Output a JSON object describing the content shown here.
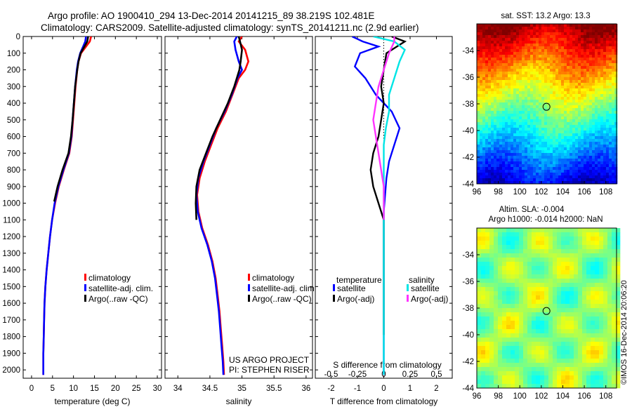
{
  "header": {
    "line1": "Argo profile: AO 1900410_294 13-Dec-2014 20141215_89 38.219S 102.481E",
    "line2": "Climatology: CARS2009. Satellite-adjusted climatology: synTS_20141211.nc (2.9d earlier)"
  },
  "colors": {
    "climatology": "#ff0000",
    "satellite": "#0000ff",
    "argo": "#000000",
    "sat_salinity": "#00e5e5",
    "argo_salinity": "#ff33ff"
  },
  "credits": {
    "project": "US ARGO PROJECT",
    "pi": "PI: STEPHEN RISER",
    "stamp": "©IMOS 16-Dec-2014 20:06:20"
  },
  "chart_data": [
    {
      "type": "line",
      "xlabel": "temperature (deg C)",
      "xlim": [
        -2,
        31
      ],
      "xticks": [
        0,
        5,
        10,
        15,
        20,
        25,
        30
      ],
      "ylim": [
        0,
        2050
      ],
      "yticks": [
        0,
        100,
        200,
        300,
        400,
        500,
        600,
        700,
        800,
        900,
        1000,
        1100,
        1200,
        1300,
        1400,
        1500,
        1600,
        1700,
        1800,
        1900,
        2000
      ],
      "y_reversed": true,
      "legend": [
        "climatology",
        "satellite-adj. clim.",
        "Argo(..raw -QC)"
      ],
      "series": [
        {
          "name": "climatology",
          "color": "#ff0000",
          "x": [
            14.2,
            13.9,
            13.0,
            11.8,
            11.2,
            10.9,
            10.5,
            10.2,
            9.9,
            9.6,
            9.0,
            7.7,
            6.5,
            5.6,
            4.9,
            4.4,
            4.0,
            3.6,
            3.3,
            3.1,
            3.0,
            2.9,
            2.8,
            2.8
          ],
          "y": [
            0,
            30,
            60,
            100,
            150,
            200,
            300,
            400,
            500,
            600,
            700,
            800,
            900,
            1000,
            1100,
            1200,
            1300,
            1400,
            1500,
            1600,
            1700,
            1800,
            1900,
            2030
          ]
        },
        {
          "name": "satellite-adj. clim.",
          "color": "#0000ff",
          "x": [
            13.0,
            12.8,
            12.3,
            11.6,
            11.1,
            10.8,
            10.4,
            10.1,
            9.8,
            9.5,
            8.9,
            7.6,
            6.4,
            5.5,
            4.9,
            4.4,
            4.0,
            3.6,
            3.3,
            3.1,
            3.0,
            2.9,
            2.8,
            2.8
          ],
          "y": [
            0,
            30,
            60,
            100,
            150,
            200,
            300,
            400,
            500,
            600,
            700,
            800,
            900,
            1000,
            1100,
            1200,
            1300,
            1400,
            1500,
            1600,
            1700,
            1800,
            1900,
            2030
          ]
        },
        {
          "name": "Argo(..raw -QC)",
          "color": "#000000",
          "x": [
            13.5,
            13.3,
            12.6,
            11.7,
            11.2,
            10.9,
            10.4,
            10.1,
            9.8,
            9.4,
            8.8,
            7.4,
            6.2,
            5.4
          ],
          "y": [
            0,
            30,
            60,
            100,
            150,
            200,
            300,
            400,
            500,
            600,
            700,
            800,
            900,
            990
          ]
        }
      ]
    },
    {
      "type": "line",
      "xlabel": "salinity",
      "xlim": [
        33.8,
        36.1
      ],
      "xticks": [
        34,
        34.5,
        35,
        35.5,
        36
      ],
      "ylim": [
        0,
        2050
      ],
      "y_reversed": true,
      "legend": [
        "climatology",
        "satellite-adj. clim.",
        "Argo(..raw -QC)"
      ],
      "series": [
        {
          "name": "climatology",
          "color": "#ff0000",
          "x": [
            35.0,
            34.95,
            35.05,
            35.1,
            35.05,
            34.95,
            34.85,
            34.75,
            34.62,
            34.52,
            34.42,
            34.34,
            34.3,
            34.32,
            34.38,
            34.47,
            34.54,
            34.59,
            34.62,
            34.65,
            34.67,
            34.69,
            34.71,
            34.72
          ],
          "y": [
            0,
            30,
            80,
            150,
            200,
            250,
            350,
            450,
            550,
            650,
            750,
            850,
            950,
            1050,
            1150,
            1250,
            1350,
            1450,
            1550,
            1650,
            1750,
            1850,
            1950,
            2030
          ]
        },
        {
          "name": "satellite-adj. clim.",
          "color": "#0000ff",
          "x": [
            34.92,
            34.88,
            34.9,
            34.95,
            35.0,
            34.93,
            34.84,
            34.73,
            34.6,
            34.5,
            34.4,
            34.32,
            34.29,
            34.31,
            34.37,
            34.46,
            34.53,
            34.58,
            34.61,
            34.64,
            34.66,
            34.68,
            34.7,
            34.71
          ],
          "y": [
            0,
            30,
            80,
            150,
            200,
            250,
            350,
            450,
            550,
            650,
            750,
            850,
            950,
            1050,
            1150,
            1250,
            1350,
            1450,
            1550,
            1650,
            1750,
            1850,
            1950,
            2030
          ]
        },
        {
          "name": "Argo(..raw -QC)",
          "color": "#000000",
          "x": [
            34.95,
            34.97,
            35.0,
            34.98,
            34.96,
            34.88,
            34.78,
            34.66,
            34.54,
            34.44,
            34.34,
            34.29,
            34.28,
            34.29
          ],
          "y": [
            0,
            30,
            80,
            150,
            200,
            300,
            400,
            500,
            600,
            700,
            800,
            900,
            1000,
            1100
          ]
        }
      ]
    },
    {
      "type": "line",
      "xlabel": "T difference from climatology",
      "xlabel2": "S difference from climatology",
      "xlim": [
        -2.6,
        2.6
      ],
      "xticks": [
        -2,
        -1,
        0,
        1,
        2
      ],
      "xticks_salinity": [
        -0.5,
        -0.25,
        0,
        0.25,
        0.5
      ],
      "xticks_salinity_labels": [
        "-0.5",
        "-0.25",
        "0",
        "0.25",
        "0.5"
      ],
      "ylim": [
        0,
        2050
      ],
      "y_reversed": true,
      "legend_titles": [
        "temperature",
        "salinity"
      ],
      "legend": [
        "satellite",
        "Argo(-adj)",
        "satellite",
        "Argo(-adj)"
      ],
      "series": [
        {
          "name": "temperature satellite",
          "color": "#0000ff",
          "x": [
            -1.2,
            -0.8,
            -0.2,
            -0.9,
            -1.1,
            -0.7,
            -0.3,
            0.3,
            0.6,
            0.4,
            0.2,
            0.1,
            0.05,
            0.0,
            0.0,
            0.0,
            0.0,
            0.0,
            0.0,
            0.0,
            0.0
          ],
          "y": [
            0,
            30,
            60,
            100,
            180,
            250,
            350,
            450,
            550,
            650,
            750,
            850,
            950,
            1050,
            1200,
            1400,
            1600,
            1800,
            1900,
            2000,
            2030
          ]
        },
        {
          "name": "temperature Argo(-adj)",
          "color": "#000000",
          "x": [
            0.3,
            0.8,
            0.5,
            0.1,
            0.0,
            -0.1,
            0.0,
            -0.1,
            -0.2,
            -0.4,
            -0.5,
            -0.4,
            -0.2,
            0.0,
            0.0,
            0.0,
            0.0
          ],
          "y": [
            0,
            30,
            60,
            100,
            200,
            300,
            400,
            500,
            600,
            700,
            800,
            900,
            1000,
            1100,
            1300,
            1600,
            1790
          ]
        },
        {
          "name": "salinity satellite",
          "color": "#00e5e5",
          "x": [
            -0.1,
            0.1,
            0.2,
            0.15,
            0.1,
            0.05,
            0.05,
            0.02,
            0.0,
            0.0,
            0.0,
            0.0,
            0.0,
            0.0,
            0.0
          ],
          "y": [
            0,
            30,
            80,
            150,
            250,
            350,
            450,
            550,
            650,
            800,
            1000,
            1300,
            1600,
            1900,
            2030
          ]
        },
        {
          "name": "salinity Argo(-adj)",
          "color": "#ff33ff",
          "x": [
            0.1,
            0.1,
            0.05,
            0.0,
            -0.05,
            -0.1,
            -0.05,
            0.0,
            0.0,
            0.0,
            0.0
          ],
          "y": [
            0,
            30,
            100,
            200,
            300,
            500,
            700,
            900,
            1000,
            1050,
            1100
          ]
        }
      ]
    },
    {
      "type": "heatmap",
      "title": "sat. SST: 13.2 Argo: 13.3",
      "xlim": [
        96,
        109
      ],
      "ylim": [
        -44,
        -32
      ],
      "xticks": [
        96,
        98,
        100,
        102,
        104,
        106,
        108
      ],
      "yticks": [
        -34,
        -36,
        -38,
        -40,
        -42,
        -44
      ],
      "marker": [
        102.48,
        -38.22
      ]
    },
    {
      "type": "heatmap",
      "title": "Altim. SLA: -0.004",
      "subtitle": "Argo h1000: -0.014 h2000: NaN",
      "xlim": [
        96,
        109
      ],
      "ylim": [
        -44,
        -32
      ],
      "xticks": [
        96,
        98,
        100,
        102,
        104,
        106,
        108
      ],
      "yticks": [
        -34,
        -36,
        -38,
        -40,
        -42,
        -44
      ],
      "marker": [
        102.48,
        -38.22
      ]
    }
  ]
}
